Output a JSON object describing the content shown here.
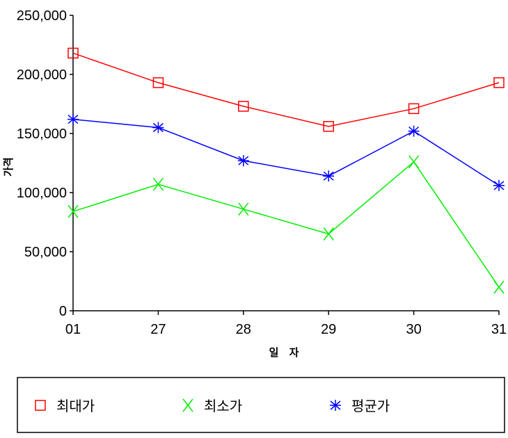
{
  "chart_data": {
    "type": "line",
    "categories": [
      "01",
      "27",
      "28",
      "29",
      "30",
      "31"
    ],
    "xlabel": "일 자",
    "ylabel": "가격",
    "ylim": [
      0,
      250000
    ],
    "yticks": [
      "0",
      "50,000",
      "100,000",
      "150,000",
      "200,000",
      "250,000"
    ],
    "grid": false,
    "legend": "bottom",
    "series": [
      {
        "name": "최대가",
        "color": "#ff0000",
        "marker": "square",
        "values": [
          218000,
          193000,
          173000,
          156000,
          171000,
          193000
        ]
      },
      {
        "name": "최소가",
        "color": "#00ee00",
        "marker": "x",
        "values": [
          84000,
          107000,
          86000,
          65000,
          126000,
          20000
        ]
      },
      {
        "name": "평균가",
        "color": "#0000ff",
        "marker": "asterisk",
        "values": [
          162000,
          155000,
          127000,
          114000,
          152000,
          106000
        ]
      }
    ]
  }
}
